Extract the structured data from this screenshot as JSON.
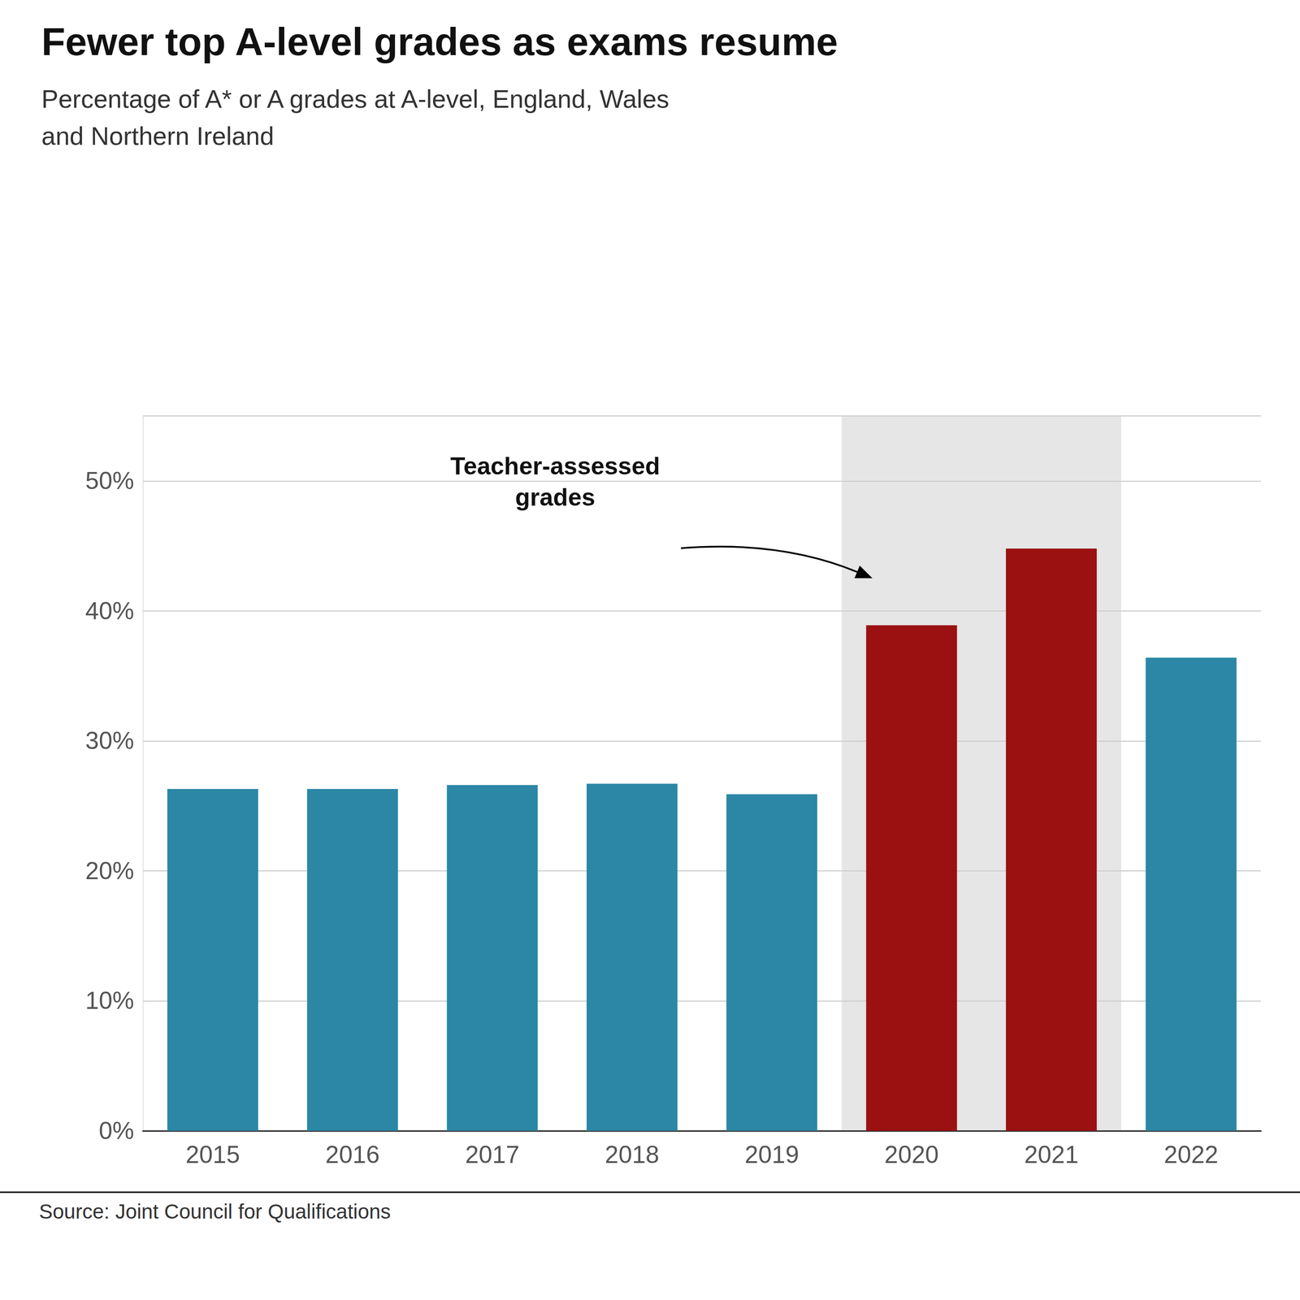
{
  "chart_data": {
    "type": "bar",
    "title": "Fewer top A-level grades as exams resume",
    "subtitle": "Percentage of A* or A grades at A-level, England, Wales\nand Northern Ireland",
    "source": "Source: Joint Council for Qualifications",
    "annotation": "Teacher-assessed\ngrades",
    "categories": [
      "2015",
      "2016",
      "2017",
      "2018",
      "2019",
      "2020",
      "2021",
      "2022"
    ],
    "values": [
      26.3,
      26.3,
      26.6,
      26.7,
      25.9,
      38.9,
      44.8,
      36.4
    ],
    "colors": [
      "#2b87a5",
      "#2b87a5",
      "#2b87a5",
      "#2b87a5",
      "#2b87a5",
      "#9b1111",
      "#9b1111",
      "#2b87a5"
    ],
    "highlight": {
      "categories": [
        "2020",
        "2021"
      ],
      "color": "#e6e6e6"
    },
    "ylim": [
      0,
      55
    ],
    "yticks": [
      {
        "value": 0,
        "label": "0%"
      },
      {
        "value": 10,
        "label": "10%"
      },
      {
        "value": 20,
        "label": "20%"
      },
      {
        "value": 30,
        "label": "30%"
      },
      {
        "value": 40,
        "label": "40%"
      },
      {
        "value": 50,
        "label": "50%"
      }
    ],
    "grid": true
  }
}
